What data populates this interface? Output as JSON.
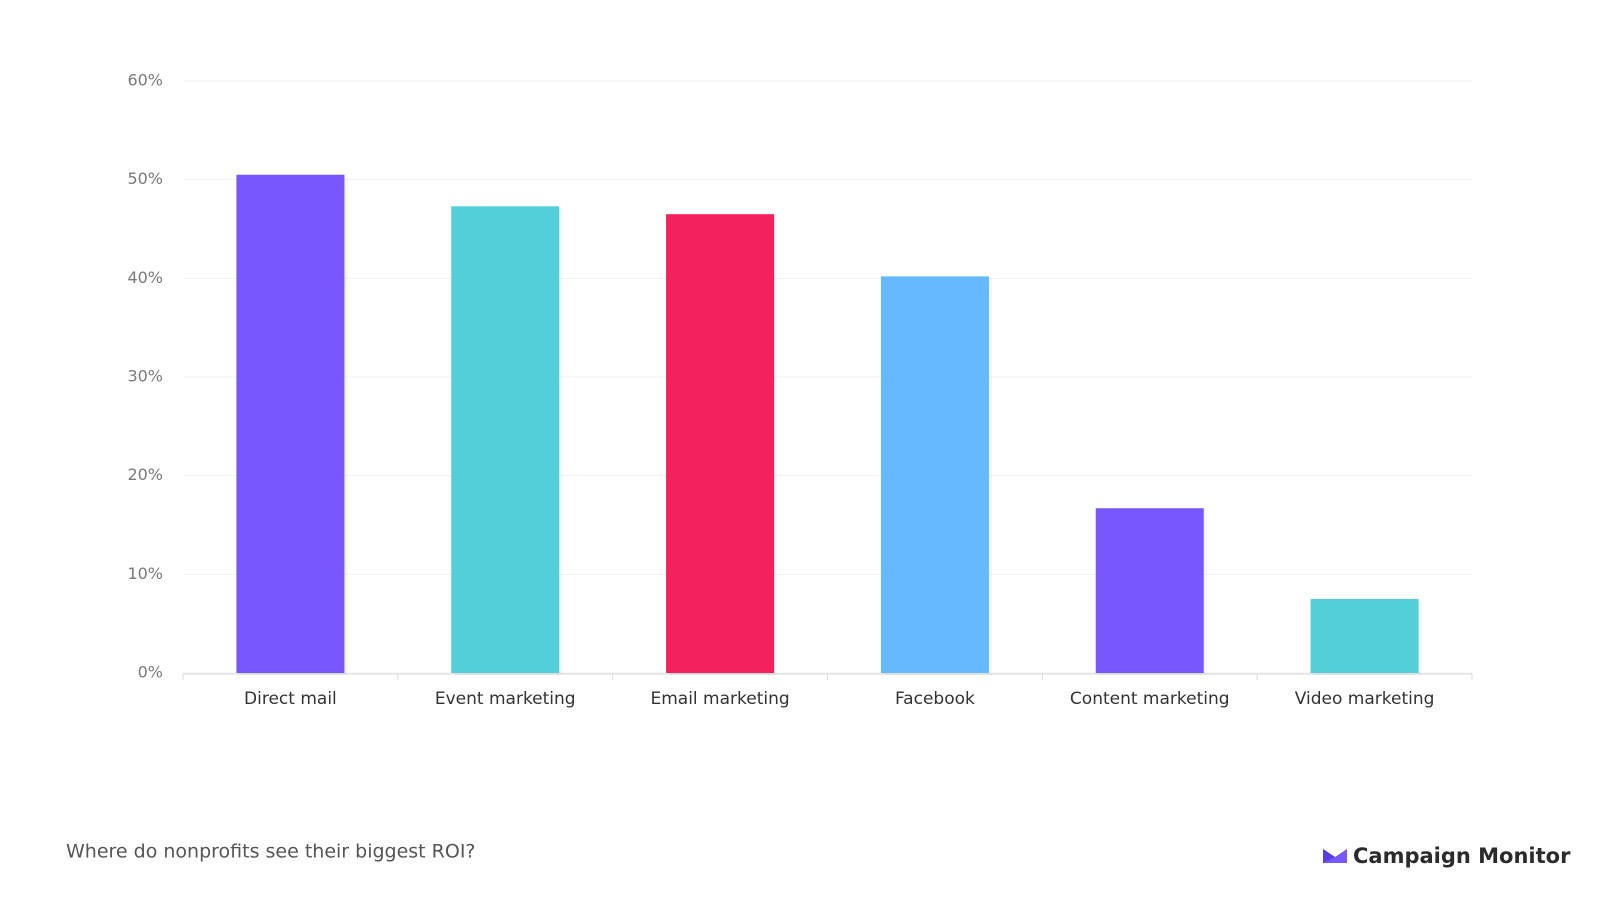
{
  "chart_data": {
    "type": "bar",
    "caption": "Where do nonprofits see their biggest ROI?",
    "brand": "Campaign Monitor",
    "categories": [
      "Direct mail",
      "Event marketing",
      "Email marketing",
      "Facebook",
      "Content marketing",
      "Video marketing"
    ],
    "values": [
      50.5,
      47.3,
      46.5,
      40.2,
      16.7,
      7.5
    ],
    "colors": [
      "#7857ff",
      "#53cfda",
      "#f5215c",
      "#66b8ff",
      "#7857ff",
      "#53cfda"
    ],
    "ylim": [
      0,
      60
    ],
    "yticks": [
      {
        "value": 0,
        "label": "0%"
      },
      {
        "value": 10,
        "label": "10%"
      },
      {
        "value": 20,
        "label": "20%"
      },
      {
        "value": 30,
        "label": "30%"
      },
      {
        "value": 40,
        "label": "40%"
      },
      {
        "value": 50,
        "label": "50%"
      },
      {
        "value": 60,
        "label": "60%"
      }
    ],
    "grid": true
  }
}
